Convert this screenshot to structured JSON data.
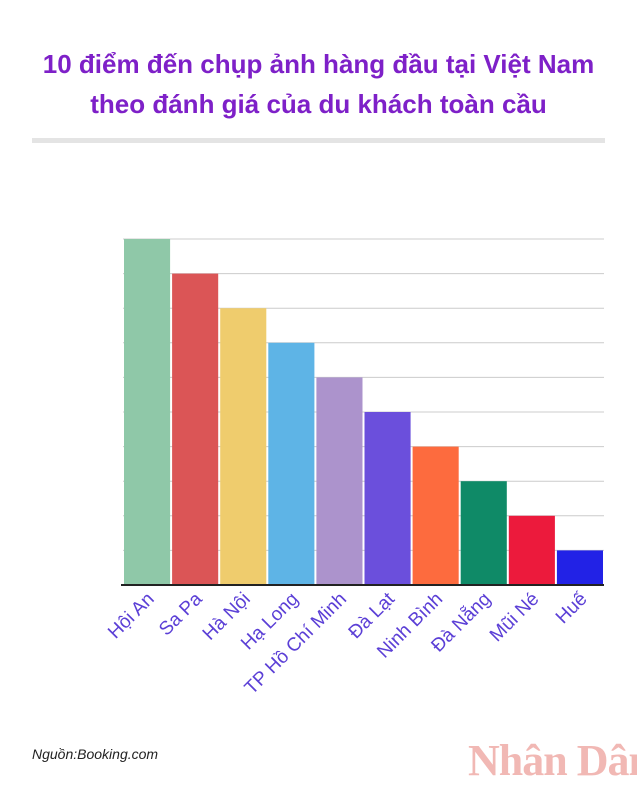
{
  "header": {
    "title_line1": "10 điểm đến chụp ảnh hàng đầu tại Việt Nam",
    "title_line2": "theo đánh giá của du khách toàn cầu"
  },
  "footer": {
    "source": "Nguồn:Booking.com",
    "logo_text": "Nhân Dân"
  },
  "colors": {
    "title": "#7e20c8",
    "category_label": "#5b3fd6",
    "logo": "#d9362b"
  },
  "chart_data": {
    "type": "bar",
    "categories": [
      "Hội An",
      "Sa Pa",
      "Hà Nội",
      "Hạ Long",
      "TP Hồ Chí Minh",
      "Đà Lạt",
      "Ninh Bình",
      "Đà Nẵng",
      "Mũi Né",
      "Huế"
    ],
    "values": [
      10,
      9,
      8,
      7,
      6,
      5,
      4,
      3,
      2,
      1
    ],
    "bar_colors": [
      "#8fc8a8",
      "#db5556",
      "#efcc6d",
      "#5eb4e6",
      "#ac93cc",
      "#6b4fdc",
      "#fd6b3e",
      "#0f8a67",
      "#ec1a3c",
      "#2222e6"
    ],
    "ylim": [
      0,
      10
    ],
    "grid": true,
    "legend": "none",
    "title": "",
    "xlabel": "",
    "ylabel": ""
  }
}
